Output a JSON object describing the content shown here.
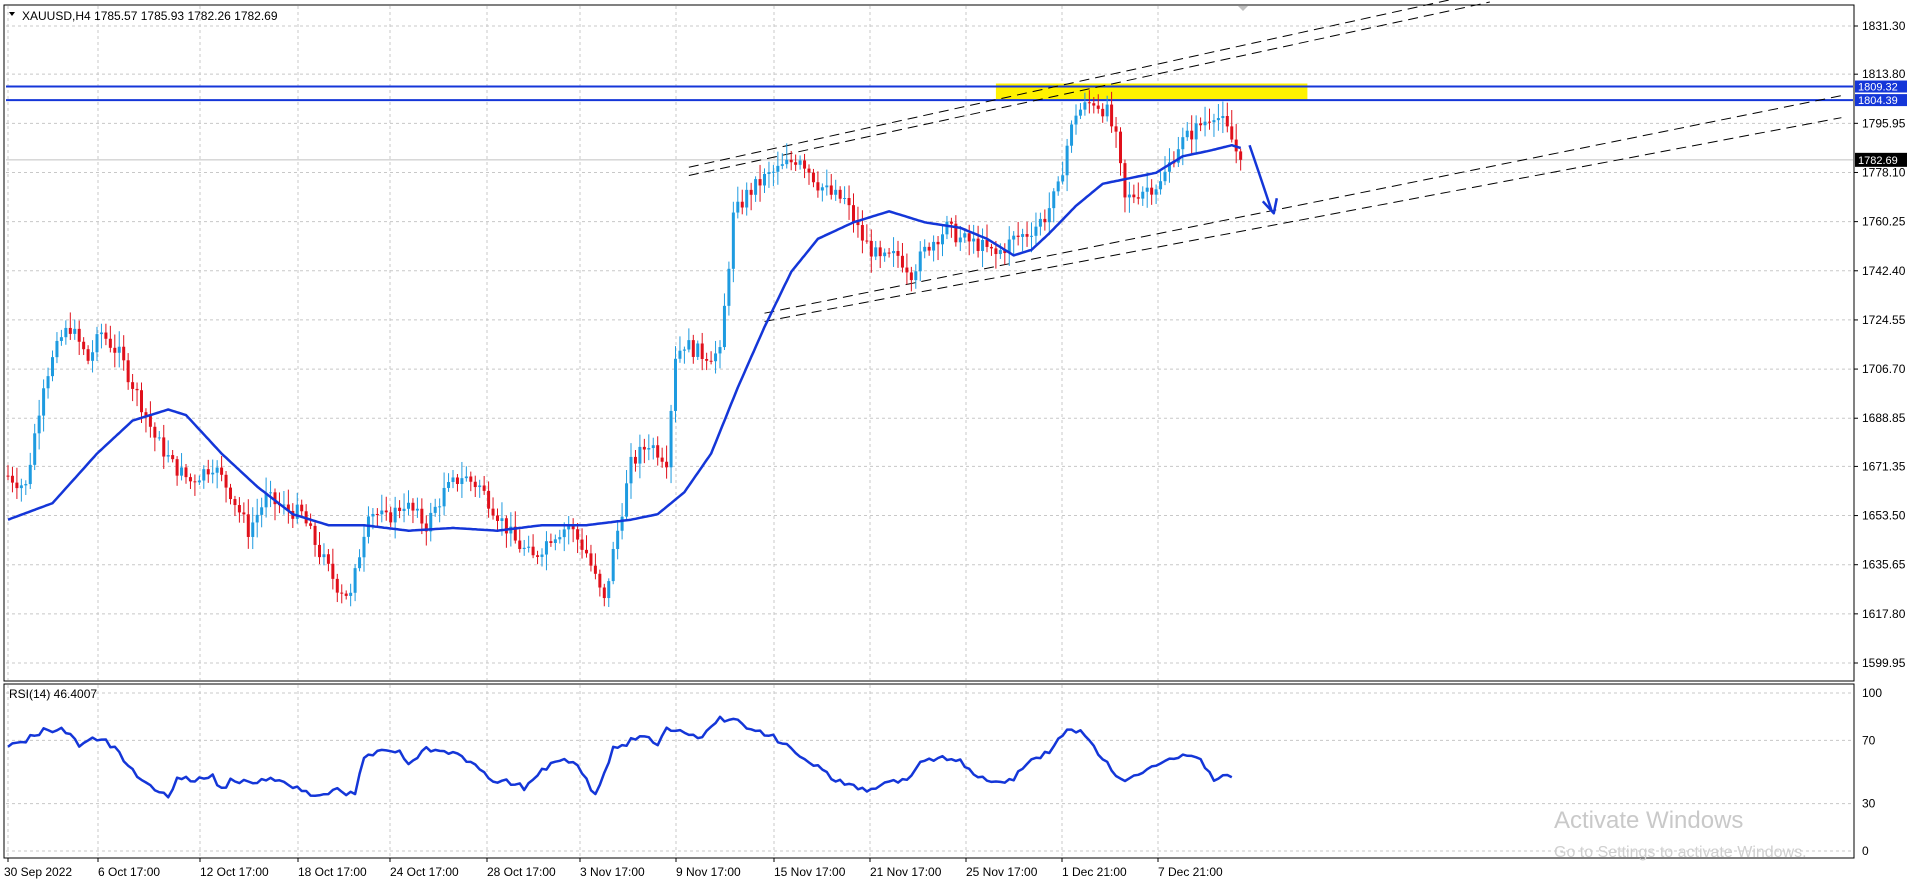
{
  "header": {
    "symbol_line": "XAUUSD,H4  1785.57 1785.93 1782.26 1782.69"
  },
  "rsi_label": "RSI(14) 46.4007",
  "watermark": {
    "title": "Activate Windows",
    "subtitle": "Go to Settings to activate Windows."
  },
  "colors": {
    "bull": "#1E9BE0",
    "bear": "#E0101B",
    "ma": "#1436D8",
    "level_line": "#1436D8",
    "highlight": "#FFF200",
    "rsi": "#1436D8"
  },
  "chart_data": [
    {
      "type": "candlestick",
      "title": "XAUUSD,H4",
      "ohlc_last": {
        "open": 1785.57,
        "high": 1785.93,
        "low": 1782.26,
        "close": 1782.69
      },
      "ylim": [
        1590.0,
        1840.0
      ],
      "y_ticks": [
        1831.3,
        1813.8,
        1795.95,
        1778.1,
        1760.25,
        1742.4,
        1724.55,
        1706.7,
        1688.85,
        1671.35,
        1653.5,
        1635.65,
        1617.8,
        1599.95
      ],
      "y_tick_labels": [
        "1831.30",
        "1813.80",
        "1795.95",
        "1778.10",
        "1760.25",
        "1742.40",
        "1724.55",
        "1706.70",
        "1688.85",
        "1671.35",
        "1653.50",
        "1635.65",
        "1617.80",
        "1599.95"
      ],
      "x_tick_labels": [
        "30 Sep 2022",
        "6 Oct 17:00",
        "12 Oct 17:00",
        "18 Oct 17:00",
        "24 Oct 17:00",
        "28 Oct 17:00",
        "3 Nov 17:00",
        "9 Nov 17:00",
        "15 Nov 17:00",
        "21 Nov 17:00",
        "25 Nov 17:00",
        "1 Dec 21:00",
        "7 Dec 21:00"
      ],
      "price_key_points": [
        [
          0,
          1668
        ],
        [
          4,
          1664
        ],
        [
          8,
          1702
        ],
        [
          12,
          1718
        ],
        [
          14,
          1722
        ],
        [
          18,
          1710
        ],
        [
          21,
          1720
        ],
        [
          25,
          1712
        ],
        [
          30,
          1694
        ],
        [
          33,
          1682
        ],
        [
          37,
          1672
        ],
        [
          41,
          1666
        ],
        [
          46,
          1672
        ],
        [
          50,
          1662
        ],
        [
          54,
          1648
        ],
        [
          58,
          1660
        ],
        [
          62,
          1656
        ],
        [
          66,
          1654
        ],
        [
          70,
          1640
        ],
        [
          74,
          1628
        ],
        [
          77,
          1624
        ],
        [
          79,
          1640
        ],
        [
          81,
          1656
        ],
        [
          85,
          1652
        ],
        [
          89,
          1658
        ],
        [
          94,
          1650
        ],
        [
          98,
          1662
        ],
        [
          102,
          1668
        ],
        [
          106,
          1664
        ],
        [
          110,
          1654
        ],
        [
          114,
          1644
        ],
        [
          118,
          1638
        ],
        [
          122,
          1646
        ],
        [
          126,
          1650
        ],
        [
          130,
          1640
        ],
        [
          133,
          1626
        ],
        [
          134,
          1622
        ],
        [
          136,
          1640
        ],
        [
          140,
          1672
        ],
        [
          144,
          1680
        ],
        [
          148,
          1674
        ],
        [
          150,
          1712
        ],
        [
          152,
          1716
        ],
        [
          156,
          1712
        ],
        [
          160,
          1712
        ],
        [
          163,
          1762
        ],
        [
          166,
          1770
        ],
        [
          170,
          1776
        ],
        [
          174,
          1780
        ],
        [
          178,
          1784
        ],
        [
          182,
          1774
        ],
        [
          185,
          1770
        ],
        [
          188,
          1768
        ],
        [
          192,
          1754
        ],
        [
          196,
          1746
        ],
        [
          200,
          1748
        ],
        [
          203,
          1742
        ],
        [
          207,
          1752
        ],
        [
          211,
          1758
        ],
        [
          214,
          1754
        ],
        [
          218,
          1752
        ],
        [
          222,
          1748
        ],
        [
          226,
          1754
        ],
        [
          229,
          1756
        ],
        [
          233,
          1762
        ],
        [
          236,
          1772
        ],
        [
          238,
          1788
        ],
        [
          240,
          1800
        ],
        [
          244,
          1804
        ],
        [
          247,
          1800
        ],
        [
          249,
          1790
        ],
        [
          251,
          1768
        ],
        [
          255,
          1772
        ],
        [
          259,
          1774
        ],
        [
          263,
          1788
        ],
        [
          267,
          1794
        ],
        [
          271,
          1800
        ],
        [
          273,
          1796
        ],
        [
          275,
          1790
        ],
        [
          277,
          1782
        ]
      ],
      "moving_average": [
        [
          0,
          1652
        ],
        [
          10,
          1658
        ],
        [
          20,
          1676
        ],
        [
          28,
          1688
        ],
        [
          36,
          1692
        ],
        [
          40,
          1690
        ],
        [
          48,
          1676
        ],
        [
          56,
          1664
        ],
        [
          64,
          1654
        ],
        [
          72,
          1650
        ],
        [
          80,
          1650
        ],
        [
          90,
          1648
        ],
        [
          100,
          1649
        ],
        [
          110,
          1648
        ],
        [
          120,
          1650
        ],
        [
          130,
          1650
        ],
        [
          140,
          1652
        ],
        [
          146,
          1654
        ],
        [
          152,
          1662
        ],
        [
          158,
          1676
        ],
        [
          164,
          1700
        ],
        [
          170,
          1722
        ],
        [
          176,
          1742
        ],
        [
          182,
          1754
        ],
        [
          190,
          1760
        ],
        [
          198,
          1764
        ],
        [
          206,
          1760
        ],
        [
          214,
          1758
        ],
        [
          220,
          1754
        ],
        [
          226,
          1748
        ],
        [
          230,
          1750
        ],
        [
          234,
          1756
        ],
        [
          240,
          1766
        ],
        [
          246,
          1774
        ],
        [
          252,
          1776
        ],
        [
          258,
          1778
        ],
        [
          264,
          1784
        ],
        [
          270,
          1786
        ],
        [
          275,
          1788
        ],
        [
          277,
          1787
        ]
      ],
      "horizontal_levels": [
        {
          "label": "1809.32",
          "value": 1809.32
        },
        {
          "label": "1804.39",
          "value": 1804.39
        }
      ],
      "current_price": {
        "label": "1782.69",
        "value": 1782.69
      },
      "resistance_zone": {
        "from": 1804.39,
        "to": 1809.32,
        "x_from": 222,
        "x_to": 292
      },
      "channel_lines": [
        {
          "x1": 153,
          "y1": 1780,
          "x2": 333,
          "y2": 1844
        },
        {
          "x1": 153,
          "y1": 1777,
          "x2": 333,
          "y2": 1840
        },
        {
          "x1": 170,
          "y1": 1727,
          "x2": 412,
          "y2": 1806
        },
        {
          "x1": 170,
          "y1": 1724,
          "x2": 412,
          "y2": 1798
        }
      ],
      "projection_arrow": [
        [
          279,
          1788
        ],
        [
          284,
          1764
        ]
      ]
    },
    {
      "type": "line",
      "name": "RSI(14)",
      "last": 46.4007,
      "ylim": [
        0,
        100
      ],
      "y_ticks": [
        100,
        70,
        30,
        0
      ],
      "y_tick_labels": [
        "100",
        "70",
        "30",
        "0"
      ],
      "key_points": [
        [
          0,
          66
        ],
        [
          4,
          70
        ],
        [
          8,
          76
        ],
        [
          12,
          78
        ],
        [
          14,
          74
        ],
        [
          16,
          68
        ],
        [
          20,
          72
        ],
        [
          24,
          66
        ],
        [
          28,
          50
        ],
        [
          32,
          40
        ],
        [
          36,
          34
        ],
        [
          38,
          46
        ],
        [
          42,
          44
        ],
        [
          46,
          47
        ],
        [
          48,
          40
        ],
        [
          50,
          44
        ],
        [
          54,
          44
        ],
        [
          58,
          46
        ],
        [
          62,
          43
        ],
        [
          66,
          38
        ],
        [
          70,
          34
        ],
        [
          74,
          38
        ],
        [
          78,
          36
        ],
        [
          80,
          60
        ],
        [
          84,
          64
        ],
        [
          88,
          62
        ],
        [
          90,
          55
        ],
        [
          94,
          66
        ],
        [
          98,
          62
        ],
        [
          102,
          60
        ],
        [
          106,
          53
        ],
        [
          108,
          46
        ],
        [
          112,
          44
        ],
        [
          116,
          40
        ],
        [
          120,
          52
        ],
        [
          124,
          58
        ],
        [
          128,
          54
        ],
        [
          130,
          44
        ],
        [
          132,
          36
        ],
        [
          134,
          48
        ],
        [
          136,
          64
        ],
        [
          140,
          70
        ],
        [
          144,
          72
        ],
        [
          146,
          68
        ],
        [
          148,
          78
        ],
        [
          152,
          74
        ],
        [
          156,
          72
        ],
        [
          160,
          84
        ],
        [
          164,
          82
        ],
        [
          168,
          76
        ],
        [
          172,
          72
        ],
        [
          176,
          64
        ],
        [
          180,
          56
        ],
        [
          184,
          50
        ],
        [
          186,
          44
        ],
        [
          190,
          42
        ],
        [
          194,
          38
        ],
        [
          198,
          44
        ],
        [
          202,
          46
        ],
        [
          206,
          58
        ],
        [
          210,
          60
        ],
        [
          214,
          56
        ],
        [
          218,
          48
        ],
        [
          222,
          44
        ],
        [
          226,
          46
        ],
        [
          230,
          58
        ],
        [
          234,
          62
        ],
        [
          236,
          70
        ],
        [
          238,
          76
        ],
        [
          242,
          74
        ],
        [
          246,
          58
        ],
        [
          250,
          44
        ],
        [
          254,
          48
        ],
        [
          258,
          54
        ],
        [
          262,
          60
        ],
        [
          266,
          62
        ],
        [
          269,
          54
        ],
        [
          271,
          46
        ],
        [
          273,
          48
        ],
        [
          275,
          46
        ]
      ]
    }
  ]
}
